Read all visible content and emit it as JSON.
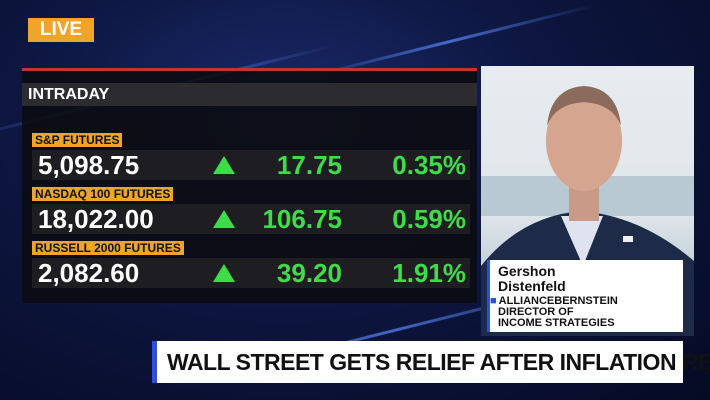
{
  "live": "LIVE",
  "panel": {
    "title": "INTRADAY",
    "rows": [
      {
        "name": "S&P FUTURES",
        "price": "5,098.75",
        "change": "17.75",
        "percent": "0.35%"
      },
      {
        "name": "NASDAQ 100 FUTURES",
        "price": "18,022.00",
        "change": "106.75",
        "percent": "0.59%"
      },
      {
        "name": "RUSSELL 2000 FUTURES",
        "price": "2,082.60",
        "change": "39.20",
        "percent": "1.91%"
      }
    ]
  },
  "guest": {
    "name": [
      "Gershon",
      "Distenfeld"
    ],
    "company": "ALLIANCEBERNSTEIN",
    "role": [
      "DIRECTOR OF",
      "INCOME STRATEGIES"
    ]
  },
  "headline": "WALL STREET GETS RELIEF AFTER INFLATION REPORT"
}
